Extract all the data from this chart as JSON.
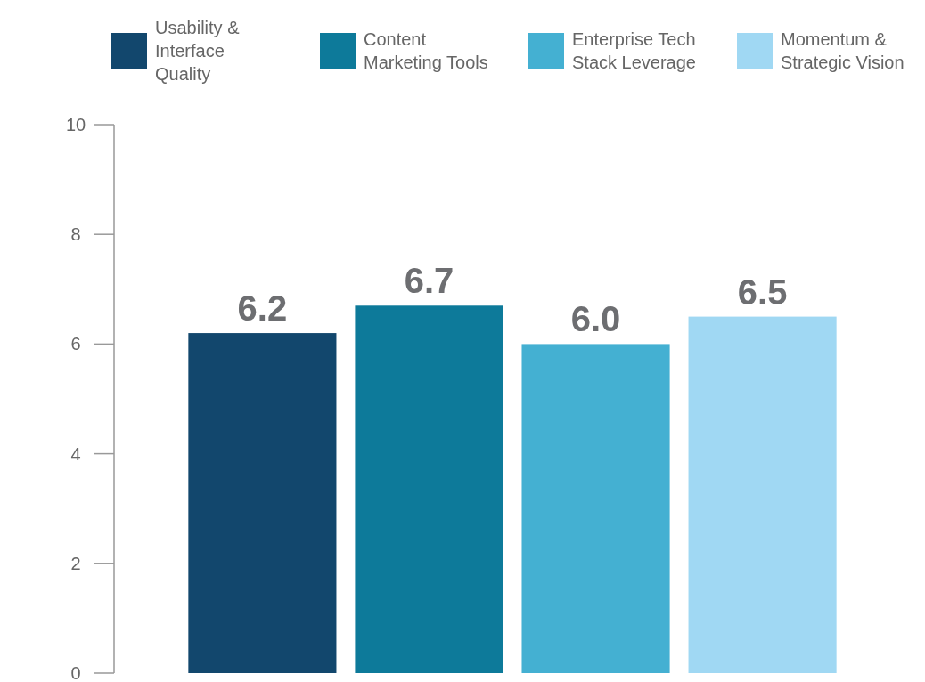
{
  "chart_data": {
    "type": "bar",
    "categories": [
      null,
      null,
      null,
      null
    ],
    "stacked": true,
    "series": [
      {
        "name": "Usability & Interface Quality",
        "color": "#12476d",
        "values": [
          6.2,
          null,
          null,
          null
        ],
        "value_labels": [
          "6.2",
          null,
          null,
          null
        ]
      },
      {
        "name": "Content Marketing Tools",
        "color": "#0d7a9a",
        "values": [
          null,
          6.7,
          null,
          null
        ],
        "value_labels": [
          null,
          "6.7",
          null,
          null
        ]
      },
      {
        "name": "Enterprise Tech Stack Leverage",
        "color": "#44b0d2",
        "values": [
          null,
          null,
          6.0,
          null
        ],
        "value_labels": [
          null,
          null,
          "6.0",
          null
        ]
      },
      {
        "name": "Momentum & Strategic Vision",
        "color": "#a0d8f3",
        "values": [
          null,
          null,
          null,
          6.5
        ],
        "value_labels": [
          null,
          null,
          null,
          "6.5"
        ]
      }
    ],
    "ylim": [
      0,
      10
    ],
    "yticks": [
      0,
      2,
      4,
      6,
      8,
      10
    ],
    "legend": "top",
    "grid": false
  }
}
